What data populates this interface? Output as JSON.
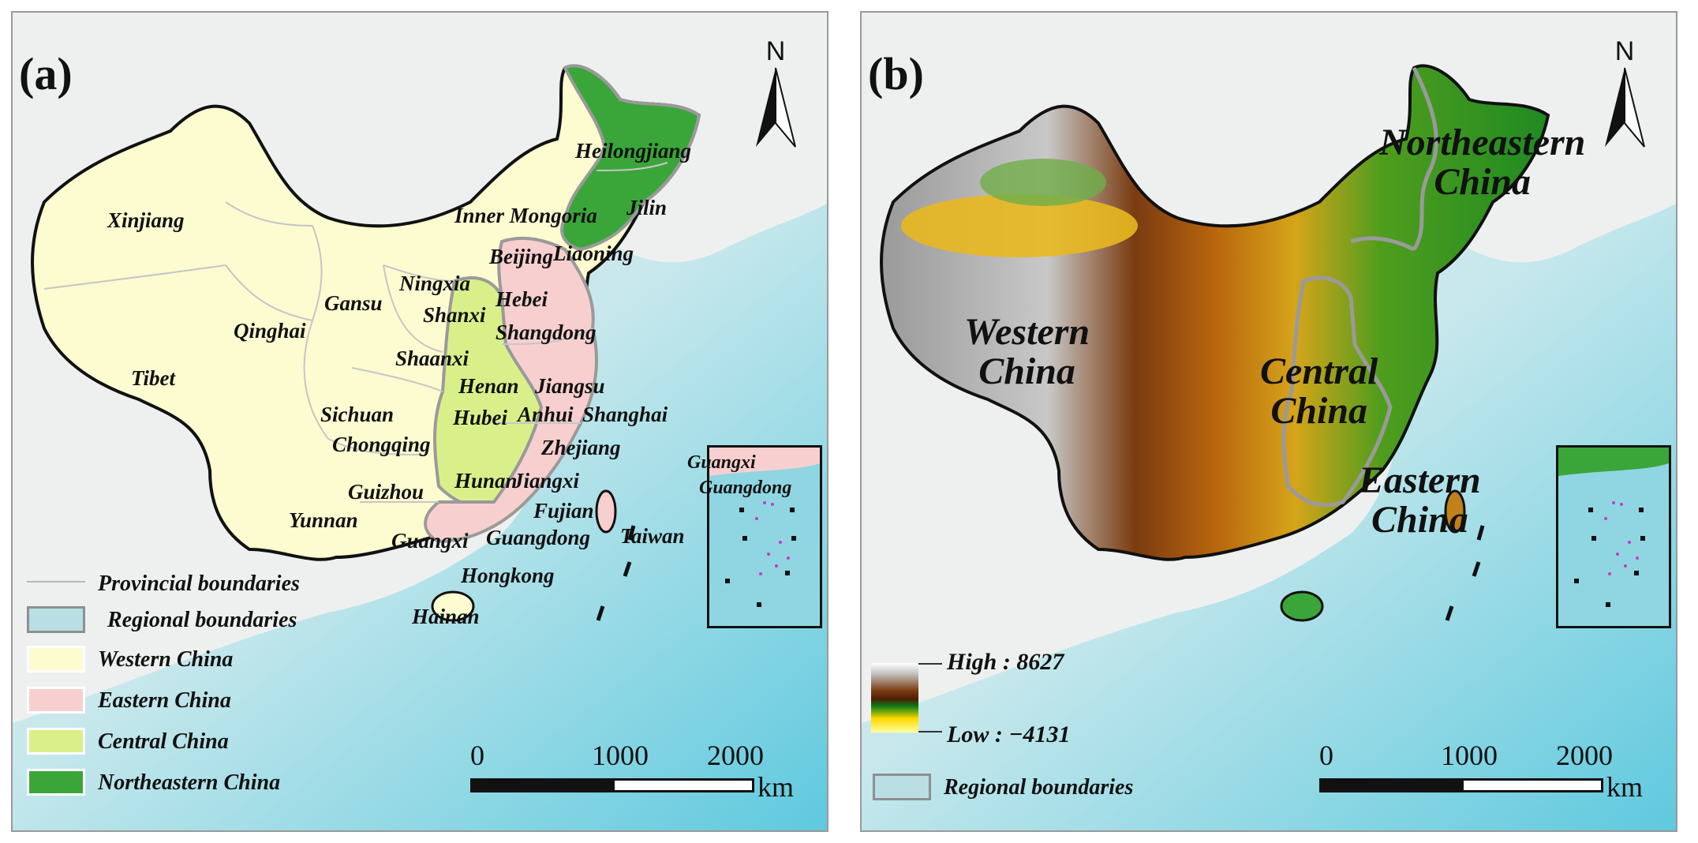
{
  "panel_a": {
    "tag": "(a)",
    "north": "N",
    "provinces": {
      "xinjiang": "Xinjiang",
      "tibet": "Tibet",
      "qinghai": "Qinghai",
      "gansu": "Gansu",
      "ningxia": "Ningxia",
      "shanxi": "Shanxi",
      "shaanxi": "Shaanxi",
      "sichuan": "Sichuan",
      "chongqing": "Chongqing",
      "guizhou": "Guizhou",
      "yunnan": "Yunnan",
      "guangxi": "Guangxi",
      "inner_mongolia": "Inner Mongoria",
      "heilongjiang": "Heilongjiang",
      "jilin": "Jilin",
      "liaoning": "Liaoning",
      "beijing": "Beijing",
      "hebei": "Hebei",
      "shangdong": "Shangdong",
      "henan": "Henan",
      "jiangsu": "Jiangsu",
      "hubei": "Hubei",
      "anhui": "Anhui",
      "shanghai": "Shanghai",
      "zhejiang": "Zhejiang",
      "hunan": "Hunan",
      "jiangxi": "Jiangxi",
      "fujian": "Fujian",
      "guangdong": "Guangdong",
      "taiwan": "Taiwan",
      "hongkong": "Hongkong",
      "hainan": "Hainan",
      "inset_guangxi": "Guangxi",
      "inset_guangdong": "Guangdong"
    },
    "legend": {
      "provincial": "Provincial boundaries",
      "regional": "Regional boundaries",
      "western": "Western China",
      "eastern": "Eastern China",
      "central": "Central China",
      "northeastern": "Northeastern China"
    },
    "scale": {
      "t0": "0",
      "t1": "1000",
      "t2": "2000",
      "unit": "km"
    }
  },
  "panel_b": {
    "tag": "(b)",
    "north": "N",
    "regions": {
      "western": "Western China",
      "central": "Central China",
      "eastern": "Eastern China",
      "northeastern": "Northeastern China"
    },
    "region_lines": {
      "western_1": "Western",
      "western_2": "China",
      "central_1": "Central",
      "central_2": "China",
      "eastern_1": "Eastern",
      "eastern_2": "China",
      "northeastern_1": "Northeastern",
      "northeastern_2": "China"
    },
    "elevation": {
      "high": "High : 8627",
      "low": "Low : −4131"
    },
    "legend_regional": "Regional boundaries",
    "scale": {
      "t0": "0",
      "t1": "1000",
      "t2": "2000",
      "unit": "km"
    }
  },
  "colors": {
    "western": "#fdfbd0",
    "eastern": "#f7cfcf",
    "central": "#d9f08a",
    "northeastern": "#3aa63a",
    "ocean": "#9fdde6",
    "regional_boundary": "#9a9a9a",
    "provincial_boundary": "#c6c6c6"
  }
}
